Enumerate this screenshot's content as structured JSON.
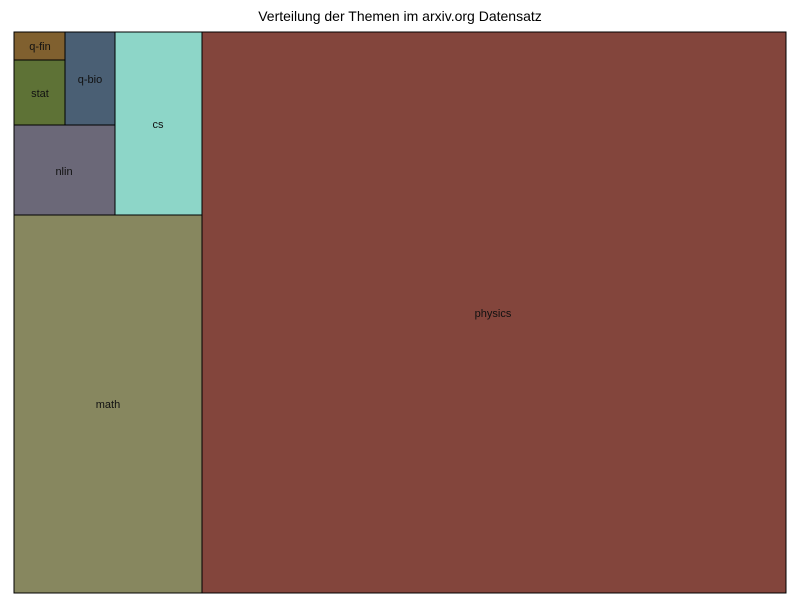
{
  "chart_data": {
    "type": "treemap",
    "title": "Verteilung der Themen im arxiv.org Datensatz",
    "cells": [
      {
        "label": "physics",
        "color": "#83453C"
      },
      {
        "label": "math",
        "color": "#87875F"
      },
      {
        "label": "cs",
        "color": "#8DD6C8"
      },
      {
        "label": "nlin",
        "color": "#6B6878"
      },
      {
        "label": "q-bio",
        "color": "#4A5F74"
      },
      {
        "label": "stat",
        "color": "#5E7236"
      },
      {
        "label": "q-fin",
        "color": "#80602F"
      }
    ]
  }
}
